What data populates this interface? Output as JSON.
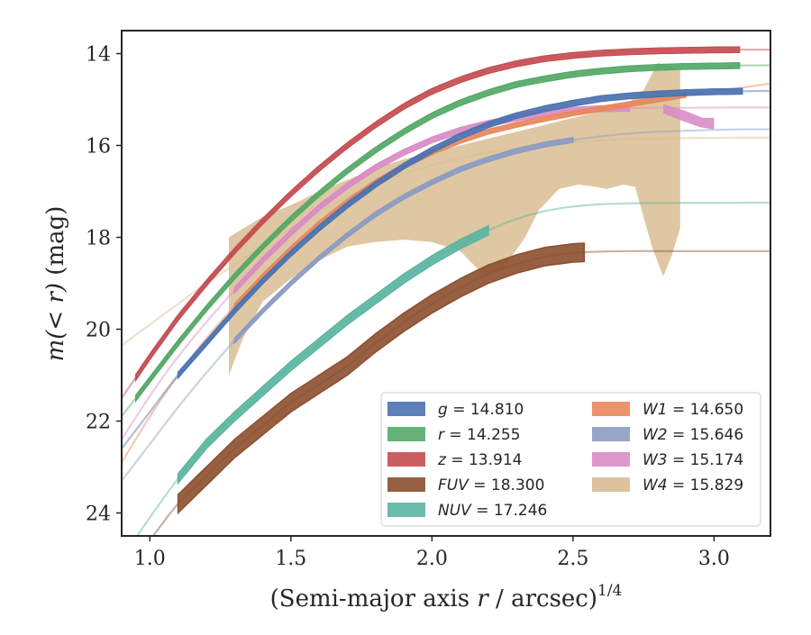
{
  "chart_data": {
    "type": "line",
    "xlabel": "(Semi-major axis r / arcsec)",
    "xlabel_prefix": "(Semi-major axis ",
    "xlabel_var": "r",
    "xlabel_suffix": " / arcsec)",
    "xlabel_power": "1/4",
    "ylabel_prefix": "m",
    "ylabel_var": "(< r)",
    "ylabel_suffix": " (mag)",
    "xlim": [
      0.9,
      3.2
    ],
    "ylim": [
      24.5,
      13.5
    ],
    "y_inverted": true,
    "xticks": [
      "1.0",
      "1.5",
      "2.0",
      "2.5",
      "3.0"
    ],
    "yticks": [
      "14",
      "16",
      "18",
      "20",
      "22",
      "24"
    ],
    "grid": false,
    "legend_placement": "lower-right",
    "legend_columns": 2,
    "series": [
      {
        "name": "g",
        "value": "14.810",
        "color": "#4c72b0",
        "x": [
          0.9,
          1.0,
          1.1,
          1.2,
          1.3,
          1.4,
          1.5,
          1.6,
          1.7,
          1.8,
          1.9,
          2.0,
          2.1,
          2.2,
          2.3,
          2.4,
          2.5,
          2.6,
          2.7,
          2.8,
          2.9,
          3.0,
          3.1,
          3.2
        ],
        "y": [
          22.6,
          21.8,
          21.0,
          20.3,
          19.6,
          18.95,
          18.35,
          17.8,
          17.3,
          16.85,
          16.45,
          16.1,
          15.8,
          15.55,
          15.35,
          15.2,
          15.08,
          14.98,
          14.92,
          14.88,
          14.85,
          14.83,
          14.82,
          14.81
        ],
        "band_start": 1.1,
        "band_end": 3.1,
        "band_halfwidth": 0.06
      },
      {
        "name": "r",
        "value": "14.255",
        "color": "#55a868",
        "x": [
          0.9,
          1.0,
          1.1,
          1.2,
          1.3,
          1.4,
          1.5,
          1.6,
          1.7,
          1.8,
          1.9,
          2.0,
          2.1,
          2.2,
          2.3,
          2.4,
          2.5,
          2.6,
          2.7,
          2.8,
          2.9,
          3.0,
          3.1,
          3.2
        ],
        "y": [
          21.9,
          21.1,
          20.3,
          19.55,
          18.85,
          18.2,
          17.6,
          17.05,
          16.55,
          16.1,
          15.7,
          15.35,
          15.07,
          14.85,
          14.67,
          14.55,
          14.45,
          14.38,
          14.33,
          14.3,
          14.28,
          14.27,
          14.26,
          14.255
        ],
        "band_start": 0.95,
        "band_end": 3.1,
        "band_halfwidth": 0.06
      },
      {
        "name": "z",
        "value": "13.914",
        "color": "#c44e52",
        "x": [
          0.9,
          1.0,
          1.1,
          1.2,
          1.3,
          1.4,
          1.5,
          1.6,
          1.7,
          1.8,
          1.9,
          2.0,
          2.1,
          2.2,
          2.3,
          2.4,
          2.5,
          2.6,
          2.7,
          2.8,
          2.9,
          3.0,
          3.1,
          3.2
        ],
        "y": [
          21.5,
          20.6,
          19.75,
          19.0,
          18.3,
          17.65,
          17.05,
          16.5,
          16.0,
          15.55,
          15.15,
          14.82,
          14.57,
          14.37,
          14.22,
          14.11,
          14.04,
          13.99,
          13.96,
          13.94,
          13.93,
          13.92,
          13.915,
          13.914
        ],
        "band_start": 0.95,
        "band_end": 3.1,
        "band_halfwidth": 0.06
      },
      {
        "name": "FUV",
        "value": "18.300",
        "color": "#8c4f2d",
        "x": [
          0.9,
          1.0,
          1.1,
          1.2,
          1.3,
          1.4,
          1.5,
          1.6,
          1.7,
          1.8,
          1.9,
          2.0,
          2.1,
          2.2,
          2.3,
          2.4,
          2.5,
          2.6,
          2.7,
          2.8,
          2.9,
          3.0,
          3.1,
          3.2
        ],
        "y": [
          25.5,
          24.6,
          23.8,
          23.2,
          22.6,
          22.1,
          21.6,
          21.2,
          20.8,
          20.3,
          19.85,
          19.45,
          19.1,
          18.8,
          18.58,
          18.42,
          18.34,
          18.31,
          18.3,
          18.3,
          18.3,
          18.3,
          18.3,
          18.3
        ],
        "band_start": 1.1,
        "band_end": 2.55,
        "band_halfwidth": 0.2
      },
      {
        "name": "NUV",
        "value": "17.246",
        "color": "#5ab4a0",
        "x": [
          0.9,
          1.0,
          1.1,
          1.2,
          1.3,
          1.4,
          1.5,
          1.6,
          1.7,
          1.8,
          1.9,
          2.0,
          2.1,
          2.2,
          2.3,
          2.4,
          2.5,
          2.6,
          2.7,
          2.8,
          2.9,
          3.0,
          3.1,
          3.2
        ],
        "y": [
          25.0,
          24.1,
          23.25,
          22.5,
          21.9,
          21.35,
          20.8,
          20.3,
          19.8,
          19.35,
          18.9,
          18.5,
          18.15,
          17.85,
          17.6,
          17.43,
          17.33,
          17.28,
          17.26,
          17.25,
          17.25,
          17.25,
          17.246,
          17.246
        ],
        "band_start": 1.1,
        "band_end": 2.2,
        "band_halfwidth": 0.1
      },
      {
        "name": "W1",
        "value": "14.650",
        "color": "#e8875c",
        "x": [
          0.9,
          1.0,
          1.1,
          1.2,
          1.3,
          1.4,
          1.5,
          1.6,
          1.7,
          1.8,
          1.9,
          2.0,
          2.1,
          2.2,
          2.3,
          2.4,
          2.5,
          2.6,
          2.7,
          2.8,
          2.9,
          3.0,
          3.1,
          3.2
        ],
        "y": [
          22.9,
          21.9,
          21.0,
          20.2,
          19.5,
          18.85,
          18.25,
          17.7,
          17.22,
          16.8,
          16.45,
          16.15,
          15.9,
          15.7,
          15.55,
          15.42,
          15.3,
          15.2,
          15.1,
          15.0,
          14.9,
          14.82,
          14.74,
          14.65
        ],
        "band_start": 1.3,
        "band_end": 2.9,
        "band_halfwidth": 0.05
      },
      {
        "name": "W2",
        "value": "15.646",
        "color": "#8c9bc3",
        "x": [
          0.9,
          1.0,
          1.1,
          1.2,
          1.3,
          1.4,
          1.5,
          1.6,
          1.7,
          1.8,
          1.9,
          2.0,
          2.1,
          2.2,
          2.3,
          2.4,
          2.5,
          2.6,
          2.7,
          2.8,
          2.9,
          3.0,
          3.1,
          3.2
        ],
        "y": [
          23.3,
          22.5,
          21.7,
          20.95,
          20.25,
          19.6,
          19.0,
          18.45,
          17.95,
          17.5,
          17.12,
          16.8,
          16.52,
          16.3,
          16.12,
          15.98,
          15.88,
          15.8,
          15.74,
          15.7,
          15.68,
          15.66,
          15.65,
          15.646
        ],
        "band_start": 1.3,
        "band_end": 2.5,
        "band_halfwidth": 0.05
      },
      {
        "name": "W3",
        "value": "15.174",
        "color": "#d98cc4",
        "x": [
          0.9,
          1.0,
          1.1,
          1.2,
          1.3,
          1.4,
          1.5,
          1.6,
          1.7,
          1.8,
          1.9,
          2.0,
          2.1,
          2.2,
          2.3,
          2.4,
          2.5,
          2.6,
          2.7,
          2.8,
          2.9,
          3.0,
          3.1,
          3.2
        ],
        "y": [
          22.4,
          21.45,
          20.6,
          19.85,
          19.15,
          18.5,
          17.9,
          17.35,
          16.88,
          16.48,
          16.15,
          15.88,
          15.67,
          15.52,
          15.4,
          15.3,
          15.23,
          15.2,
          15.19,
          15.18,
          15.18,
          15.175,
          15.174,
          15.174
        ],
        "band_start": 1.3,
        "band_end": 2.7,
        "band_halfwidth": 0.06
      },
      {
        "name": "W4",
        "value": "15.829",
        "color": "#d8bd92",
        "x": [
          0.9,
          1.0,
          1.1,
          1.2,
          1.3,
          1.4,
          1.5,
          1.6,
          1.7,
          1.8,
          1.9,
          2.0,
          2.1,
          2.2,
          2.3,
          2.4,
          2.5,
          2.6,
          2.7,
          2.8,
          2.9,
          3.0,
          3.1,
          3.2
        ],
        "y": [
          20.35,
          19.9,
          19.45,
          19.0,
          18.6,
          18.2,
          17.8,
          17.45,
          17.12,
          16.85,
          16.62,
          16.43,
          16.28,
          16.15,
          16.05,
          15.98,
          15.93,
          15.89,
          15.86,
          15.85,
          15.84,
          15.835,
          15.83,
          15.829
        ]
      }
    ],
    "w4_band": {
      "upper": [
        [
          1.28,
          18.0
        ],
        [
          1.4,
          17.55
        ],
        [
          1.5,
          17.3
        ],
        [
          1.6,
          17.0
        ],
        [
          1.7,
          16.75
        ],
        [
          1.8,
          16.5
        ],
        [
          1.9,
          16.3
        ],
        [
          2.0,
          16.15
        ],
        [
          2.1,
          16.0
        ],
        [
          2.2,
          15.85
        ],
        [
          2.3,
          15.7
        ],
        [
          2.4,
          15.55
        ],
        [
          2.5,
          15.4
        ],
        [
          2.6,
          15.25
        ],
        [
          2.7,
          15.05
        ],
        [
          2.75,
          14.8
        ],
        [
          2.8,
          14.2
        ],
        [
          2.88,
          14.35
        ]
      ],
      "lower": [
        [
          2.88,
          17.8
        ],
        [
          2.85,
          18.4
        ],
        [
          2.82,
          18.85
        ],
        [
          2.78,
          18.2
        ],
        [
          2.72,
          16.9
        ],
        [
          2.68,
          16.85
        ],
        [
          2.62,
          16.95
        ],
        [
          2.58,
          16.9
        ],
        [
          2.52,
          16.85
        ],
        [
          2.45,
          16.95
        ],
        [
          2.38,
          17.4
        ],
        [
          2.33,
          18.0
        ],
        [
          2.25,
          18.7
        ],
        [
          2.18,
          18.8
        ],
        [
          2.1,
          18.3
        ],
        [
          2.0,
          18.1
        ],
        [
          1.9,
          18.05
        ],
        [
          1.8,
          18.1
        ],
        [
          1.7,
          18.2
        ],
        [
          1.6,
          18.5
        ],
        [
          1.5,
          18.9
        ],
        [
          1.4,
          19.4
        ],
        [
          1.33,
          20.2
        ],
        [
          1.28,
          21.0
        ]
      ]
    },
    "w3_band": {
      "upper": [
        [
          2.82,
          15.1
        ],
        [
          2.9,
          15.25
        ],
        [
          2.96,
          15.4
        ],
        [
          3.0,
          15.4
        ]
      ],
      "lower": [
        [
          3.0,
          15.65
        ],
        [
          2.95,
          15.6
        ],
        [
          2.88,
          15.45
        ],
        [
          2.82,
          15.3
        ]
      ]
    }
  }
}
